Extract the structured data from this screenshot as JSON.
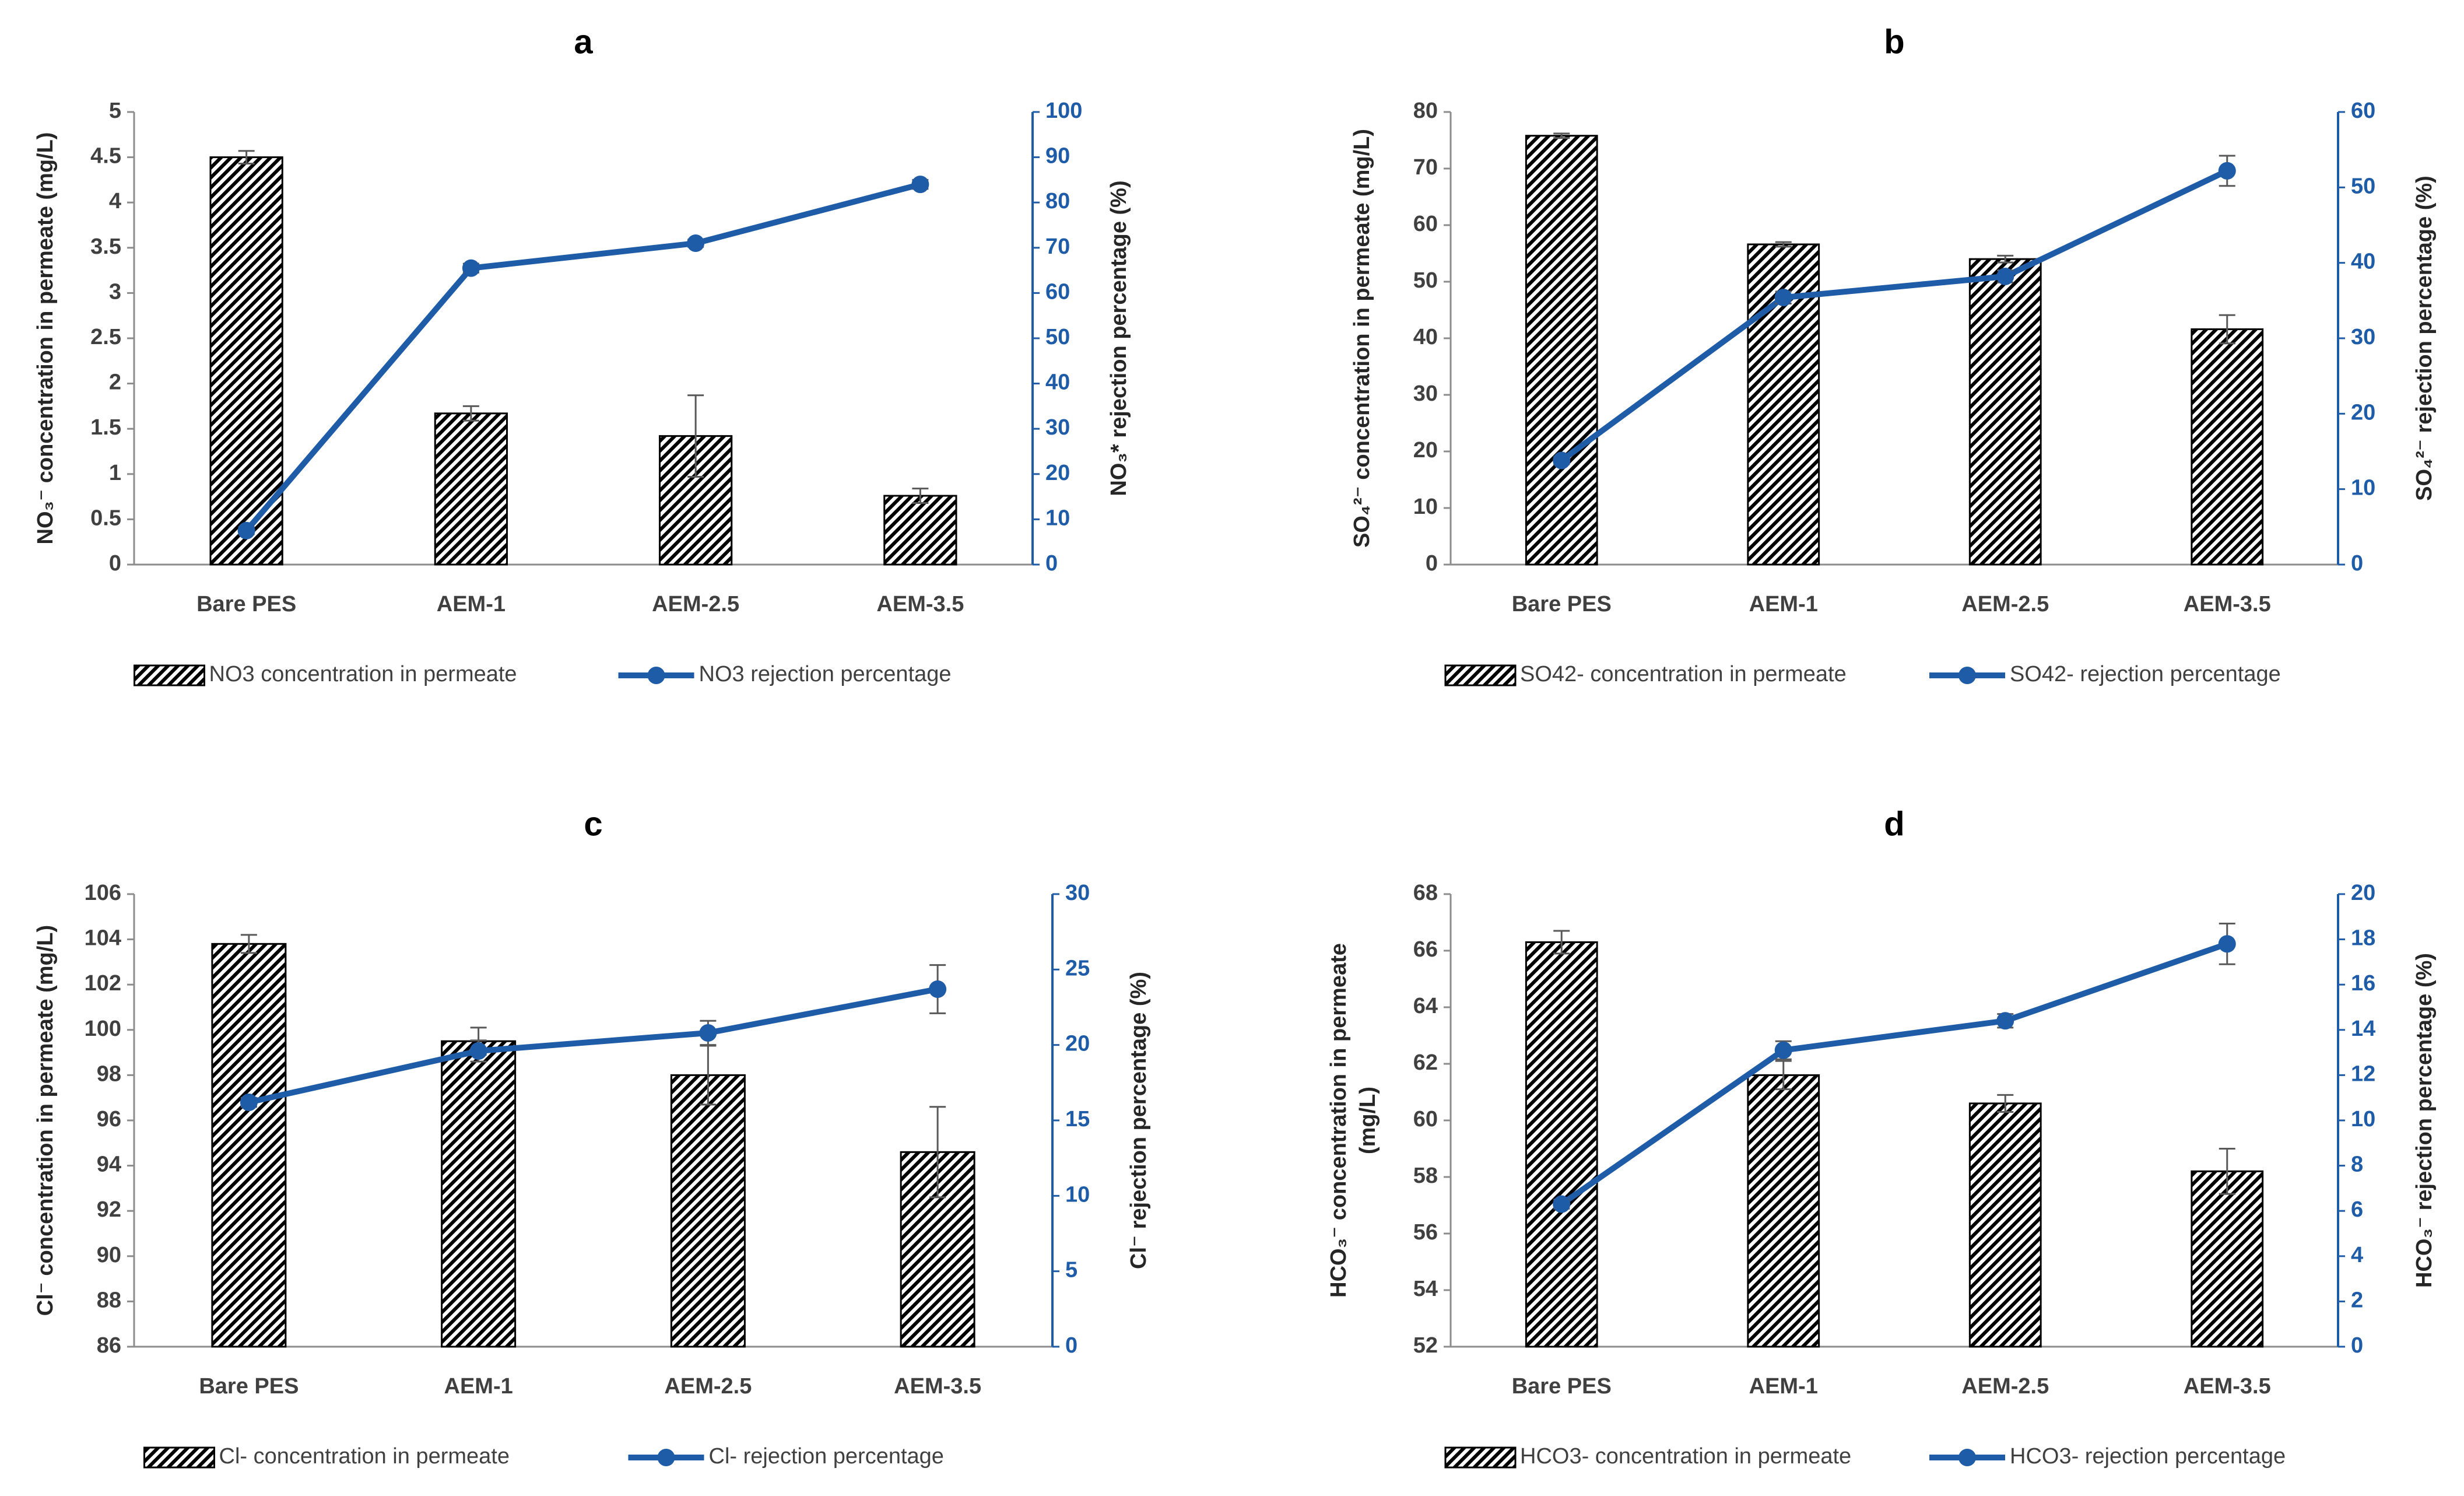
{
  "chart_data": [
    {
      "type": "combo",
      "title": "a",
      "categories": [
        "Bare PES",
        "AEM-1",
        "AEM-2.5",
        "AEM-3.5"
      ],
      "y_label": "NO₃⁻ concentration in permeate (mg/L)",
      "y2_label": "NO₃* rejection percentage (%)",
      "ylim": [
        0,
        5
      ],
      "yticks": [
        0,
        0.5,
        1,
        1.5,
        2,
        2.5,
        3,
        3.5,
        4,
        4.5,
        5
      ],
      "y2lim": [
        0,
        100
      ],
      "y2ticks": [
        0,
        10,
        20,
        30,
        40,
        50,
        60,
        70,
        80,
        90,
        100
      ],
      "series": [
        {
          "name": "NO3 concentration in permeate",
          "color": "#000000",
          "values": [
            4.5,
            1.67,
            1.42,
            0.76
          ],
          "errors": [
            0.07,
            0.08,
            0.45,
            0.08
          ]
        },
        {
          "name": "NO3 rejection percentage",
          "color": "#1f5ca8",
          "axis": "y2",
          "values": [
            7.5,
            65.5,
            71,
            84
          ],
          "errors": [
            0.8,
            1,
            0.8,
            1
          ]
        }
      ]
    },
    {
      "type": "combo",
      "title": "b",
      "categories": [
        "Bare PES",
        "AEM-1",
        "AEM-2.5",
        "AEM-3.5"
      ],
      "y_label": "SO₄²⁻ concentration in permeate (mg/L)",
      "y2_label": "SO₄²⁻ rejection percentage (%)",
      "ylim": [
        0,
        80
      ],
      "yticks": [
        0,
        10,
        20,
        30,
        40,
        50,
        60,
        70,
        80
      ],
      "y2lim": [
        0,
        60
      ],
      "y2ticks": [
        0,
        10,
        20,
        30,
        40,
        50,
        60
      ],
      "series": [
        {
          "name": "SO42- concentration in permeate",
          "color": "#000000",
          "values": [
            75.8,
            56.6,
            54,
            41.6
          ],
          "errors": [
            0.4,
            0.4,
            0.6,
            2.5
          ]
        },
        {
          "name": "SO42- rejection percentage",
          "color": "#1f5ca8",
          "axis": "y2",
          "values": [
            13.8,
            35.4,
            38.2,
            52.2
          ],
          "errors": [
            0.5,
            0.8,
            0.8,
            2
          ]
        }
      ]
    },
    {
      "type": "combo",
      "title": "c",
      "categories": [
        "Bare PES",
        "AEM-1",
        "AEM-2.5",
        "AEM-3.5"
      ],
      "y_label": "Cl⁻ concentration in permeate (mg/L)",
      "y2_label": "Cl⁻ rejection percentage (%)",
      "ylim": [
        86,
        106
      ],
      "yticks": [
        86,
        88,
        90,
        92,
        94,
        96,
        98,
        100,
        102,
        104,
        106
      ],
      "y2lim": [
        0,
        30
      ],
      "y2ticks": [
        0,
        5,
        10,
        15,
        20,
        25,
        30
      ],
      "series": [
        {
          "name": "Cl- concentration in permeate",
          "color": "#000000",
          "values": [
            103.8,
            99.5,
            98,
            94.6
          ],
          "errors": [
            0.4,
            0.6,
            1.3,
            2
          ]
        },
        {
          "name": "Cl- rejection percentage",
          "color": "#1f5ca8",
          "axis": "y2",
          "values": [
            16.2,
            19.6,
            20.8,
            23.7
          ],
          "errors": [
            0.3,
            0.7,
            0.8,
            1.6
          ]
        }
      ]
    },
    {
      "type": "combo",
      "title": "d",
      "categories": [
        "Bare PES",
        "AEM-1",
        "AEM-2.5",
        "AEM-3.5"
      ],
      "y_label": [
        "HCO₃⁻ concentration in permeate",
        "(mg/L)"
      ],
      "y2_label": "HCO₃⁻ rejection percentage (%)",
      "ylim": [
        52,
        68
      ],
      "yticks": [
        52,
        54,
        56,
        58,
        60,
        62,
        64,
        66,
        68
      ],
      "y2lim": [
        0,
        20
      ],
      "y2ticks": [
        0,
        2,
        4,
        6,
        8,
        10,
        12,
        14,
        16,
        18,
        20
      ],
      "series": [
        {
          "name": "HCO3- concentration in permeate",
          "color": "#000000",
          "values": [
            66.3,
            61.6,
            60.6,
            58.2
          ],
          "errors": [
            0.4,
            0.5,
            0.3,
            0.8
          ]
        },
        {
          "name": "HCO3- rejection percentage",
          "color": "#1f5ca8",
          "axis": "y2",
          "values": [
            6.3,
            13.1,
            14.4,
            17.8
          ],
          "errors": [
            0.2,
            0.4,
            0.3,
            0.9
          ]
        }
      ]
    }
  ]
}
